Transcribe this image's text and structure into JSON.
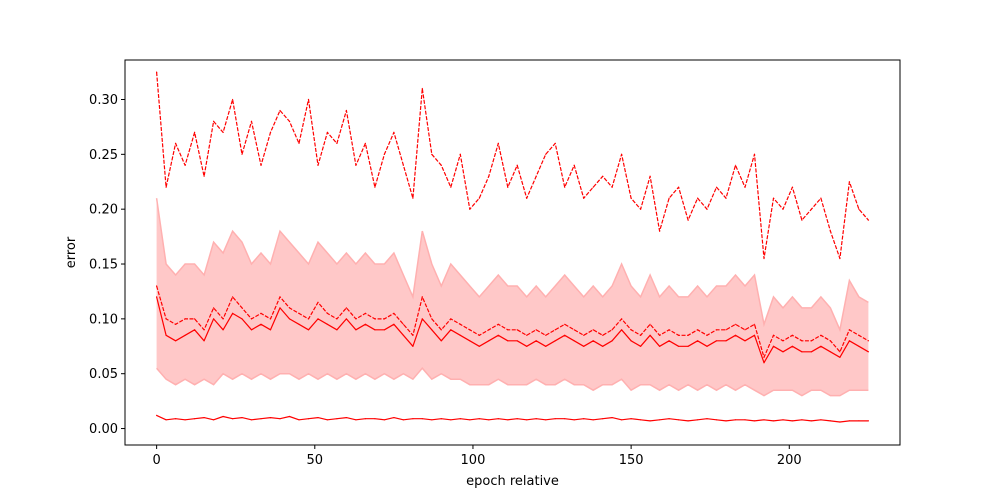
{
  "chart_data": {
    "type": "line",
    "title": "",
    "xlabel": "epoch relative",
    "ylabel": "error",
    "xlim": [
      -10,
      235
    ],
    "ylim": [
      -0.015,
      0.336
    ],
    "xticks": [
      0,
      50,
      100,
      150,
      200
    ],
    "yticks": [
      0.0,
      0.05,
      0.1,
      0.15,
      0.2,
      0.25,
      0.3
    ],
    "xtick_labels": [
      "0",
      "50",
      "100",
      "150",
      "200"
    ],
    "ytick_labels": [
      "0.00",
      "0.05",
      "0.10",
      "0.15",
      "0.20",
      "0.25",
      "0.30"
    ],
    "grid": false,
    "legend": "none",
    "x": [
      0,
      3,
      6,
      9,
      12,
      15,
      18,
      21,
      24,
      27,
      30,
      33,
      36,
      39,
      42,
      45,
      48,
      51,
      54,
      57,
      60,
      63,
      66,
      69,
      72,
      75,
      78,
      81,
      84,
      87,
      90,
      93,
      96,
      99,
      102,
      105,
      108,
      111,
      114,
      117,
      120,
      123,
      126,
      129,
      132,
      135,
      138,
      141,
      144,
      147,
      150,
      153,
      156,
      159,
      162,
      165,
      168,
      171,
      174,
      177,
      180,
      183,
      186,
      189,
      192,
      195,
      198,
      201,
      204,
      207,
      210,
      213,
      216,
      219,
      222,
      225
    ],
    "band": {
      "color": "#ffc8c8",
      "edge_color": "#ffb0b0",
      "upper": [
        0.21,
        0.15,
        0.14,
        0.15,
        0.15,
        0.14,
        0.17,
        0.16,
        0.18,
        0.17,
        0.15,
        0.16,
        0.15,
        0.18,
        0.17,
        0.16,
        0.15,
        0.17,
        0.16,
        0.15,
        0.16,
        0.15,
        0.16,
        0.15,
        0.15,
        0.16,
        0.14,
        0.12,
        0.18,
        0.15,
        0.13,
        0.15,
        0.14,
        0.13,
        0.12,
        0.13,
        0.14,
        0.13,
        0.13,
        0.12,
        0.13,
        0.12,
        0.13,
        0.14,
        0.13,
        0.12,
        0.13,
        0.12,
        0.13,
        0.15,
        0.13,
        0.12,
        0.14,
        0.12,
        0.13,
        0.12,
        0.12,
        0.13,
        0.12,
        0.13,
        0.13,
        0.14,
        0.13,
        0.14,
        0.095,
        0.12,
        0.11,
        0.12,
        0.11,
        0.11,
        0.12,
        0.11,
        0.09,
        0.135,
        0.12,
        0.115
      ],
      "lower": [
        0.055,
        0.045,
        0.04,
        0.045,
        0.04,
        0.045,
        0.04,
        0.05,
        0.045,
        0.05,
        0.045,
        0.05,
        0.045,
        0.05,
        0.05,
        0.045,
        0.05,
        0.045,
        0.05,
        0.045,
        0.05,
        0.045,
        0.05,
        0.045,
        0.05,
        0.045,
        0.05,
        0.045,
        0.055,
        0.045,
        0.05,
        0.045,
        0.045,
        0.04,
        0.04,
        0.04,
        0.045,
        0.04,
        0.04,
        0.04,
        0.045,
        0.04,
        0.04,
        0.045,
        0.04,
        0.04,
        0.035,
        0.04,
        0.04,
        0.045,
        0.035,
        0.04,
        0.04,
        0.035,
        0.04,
        0.035,
        0.04,
        0.035,
        0.04,
        0.035,
        0.04,
        0.035,
        0.04,
        0.035,
        0.03,
        0.035,
        0.035,
        0.035,
        0.03,
        0.035,
        0.035,
        0.03,
        0.03,
        0.035,
        0.035,
        0.035
      ]
    },
    "series": [
      {
        "style": "dashed",
        "color": "#ff0000",
        "values": [
          0.325,
          0.22,
          0.26,
          0.24,
          0.27,
          0.23,
          0.28,
          0.27,
          0.3,
          0.25,
          0.28,
          0.24,
          0.27,
          0.29,
          0.28,
          0.26,
          0.3,
          0.24,
          0.27,
          0.26,
          0.29,
          0.24,
          0.26,
          0.22,
          0.25,
          0.27,
          0.24,
          0.21,
          0.31,
          0.25,
          0.24,
          0.22,
          0.25,
          0.2,
          0.21,
          0.23,
          0.26,
          0.22,
          0.24,
          0.21,
          0.23,
          0.25,
          0.26,
          0.22,
          0.24,
          0.21,
          0.22,
          0.23,
          0.22,
          0.25,
          0.21,
          0.2,
          0.23,
          0.18,
          0.21,
          0.22,
          0.19,
          0.21,
          0.2,
          0.22,
          0.21,
          0.24,
          0.22,
          0.25,
          0.155,
          0.21,
          0.2,
          0.22,
          0.19,
          0.2,
          0.21,
          0.18,
          0.155,
          0.225,
          0.2,
          0.19
        ]
      },
      {
        "style": "dashed",
        "color": "#ff0000",
        "values": [
          0.13,
          0.1,
          0.095,
          0.1,
          0.1,
          0.09,
          0.11,
          0.1,
          0.12,
          0.11,
          0.1,
          0.105,
          0.1,
          0.12,
          0.11,
          0.105,
          0.1,
          0.115,
          0.105,
          0.1,
          0.11,
          0.1,
          0.105,
          0.1,
          0.1,
          0.105,
          0.095,
          0.085,
          0.12,
          0.1,
          0.09,
          0.1,
          0.095,
          0.09,
          0.085,
          0.09,
          0.095,
          0.09,
          0.09,
          0.085,
          0.09,
          0.085,
          0.09,
          0.095,
          0.09,
          0.085,
          0.09,
          0.085,
          0.09,
          0.1,
          0.09,
          0.085,
          0.095,
          0.085,
          0.09,
          0.085,
          0.085,
          0.09,
          0.085,
          0.09,
          0.09,
          0.095,
          0.09,
          0.095,
          0.065,
          0.085,
          0.08,
          0.085,
          0.08,
          0.08,
          0.085,
          0.08,
          0.07,
          0.09,
          0.085,
          0.08
        ]
      },
      {
        "style": "solid",
        "color": "#ff0000",
        "values": [
          0.12,
          0.085,
          0.08,
          0.085,
          0.09,
          0.08,
          0.1,
          0.09,
          0.105,
          0.1,
          0.09,
          0.095,
          0.09,
          0.11,
          0.1,
          0.095,
          0.09,
          0.1,
          0.095,
          0.09,
          0.1,
          0.09,
          0.095,
          0.09,
          0.09,
          0.095,
          0.085,
          0.075,
          0.1,
          0.09,
          0.08,
          0.09,
          0.085,
          0.08,
          0.075,
          0.08,
          0.085,
          0.08,
          0.08,
          0.075,
          0.08,
          0.075,
          0.08,
          0.085,
          0.08,
          0.075,
          0.08,
          0.075,
          0.08,
          0.09,
          0.08,
          0.075,
          0.085,
          0.075,
          0.08,
          0.075,
          0.075,
          0.08,
          0.075,
          0.08,
          0.08,
          0.085,
          0.08,
          0.085,
          0.06,
          0.075,
          0.07,
          0.075,
          0.07,
          0.07,
          0.075,
          0.07,
          0.065,
          0.08,
          0.075,
          0.07
        ]
      },
      {
        "style": "solid",
        "color": "#ff0000",
        "values": [
          0.012,
          0.008,
          0.009,
          0.008,
          0.009,
          0.01,
          0.008,
          0.011,
          0.009,
          0.01,
          0.008,
          0.009,
          0.01,
          0.009,
          0.011,
          0.008,
          0.009,
          0.01,
          0.008,
          0.009,
          0.01,
          0.008,
          0.009,
          0.009,
          0.008,
          0.01,
          0.008,
          0.009,
          0.009,
          0.008,
          0.009,
          0.008,
          0.009,
          0.008,
          0.009,
          0.008,
          0.009,
          0.008,
          0.009,
          0.008,
          0.009,
          0.008,
          0.009,
          0.009,
          0.008,
          0.009,
          0.008,
          0.009,
          0.01,
          0.008,
          0.009,
          0.008,
          0.007,
          0.008,
          0.009,
          0.008,
          0.007,
          0.008,
          0.009,
          0.008,
          0.007,
          0.008,
          0.008,
          0.007,
          0.008,
          0.007,
          0.008,
          0.007,
          0.008,
          0.007,
          0.008,
          0.007,
          0.006,
          0.007,
          0.007,
          0.007
        ]
      }
    ]
  }
}
